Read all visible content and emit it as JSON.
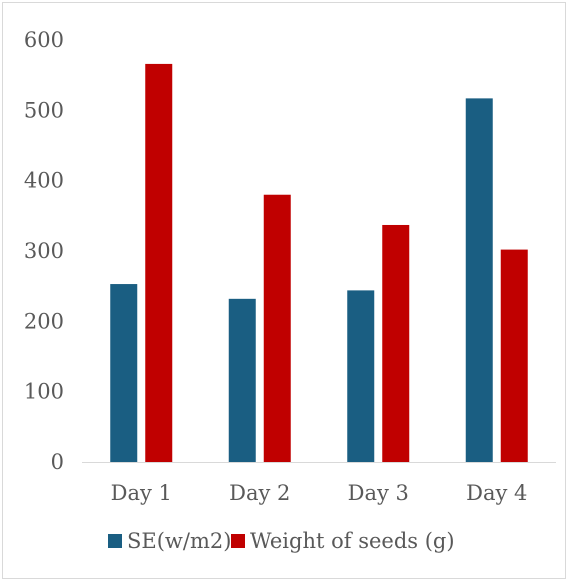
{
  "chart_data": {
    "type": "bar",
    "categories": [
      "Day 1",
      "Day 2",
      "Day 3",
      "Day 4"
    ],
    "series": [
      {
        "name": "SE(w/m2)",
        "color": "#1a5e82",
        "values": [
          253,
          232,
          244,
          517
        ]
      },
      {
        "name": "Weight of seeds (g)",
        "color": "#c00000",
        "values": [
          566,
          380,
          337,
          302
        ]
      }
    ],
    "yticks": [
      0,
      100,
      200,
      300,
      400,
      500,
      600
    ],
    "ylim": [
      0,
      600
    ],
    "grid": false,
    "legend": "bottom"
  }
}
